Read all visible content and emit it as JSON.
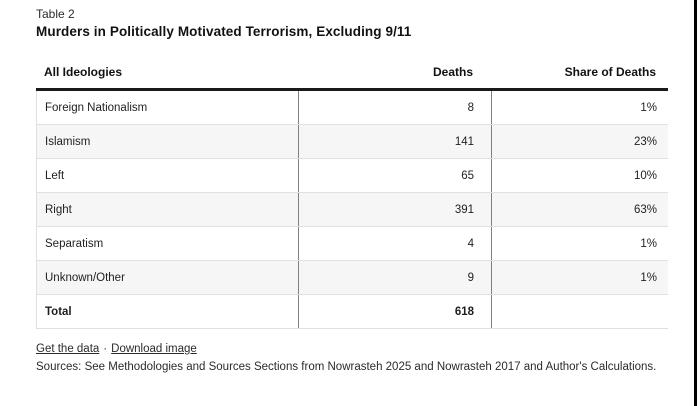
{
  "header": {
    "kicker": "Table 2",
    "title": "Murders in Politically Motivated Terrorism, Excluding 9/11"
  },
  "table": {
    "columns": {
      "ideology": "All Ideologies",
      "deaths": "Deaths",
      "share": "Share of Deaths"
    },
    "rows": [
      {
        "ideology": "Foreign Nationalism",
        "deaths": "8",
        "share": "1%"
      },
      {
        "ideology": "Islamism",
        "deaths": "141",
        "share": "23%"
      },
      {
        "ideology": "Left",
        "deaths": "65",
        "share": "10%"
      },
      {
        "ideology": "Right",
        "deaths": "391",
        "share": "63%"
      },
      {
        "ideology": "Separatism",
        "deaths": "4",
        "share": "1%"
      },
      {
        "ideology": "Unknown/Other",
        "deaths": "9",
        "share": "1%"
      }
    ],
    "total": {
      "ideology": "Total",
      "deaths": "618",
      "share": ""
    }
  },
  "footer": {
    "link_get_data": "Get the data",
    "link_separator": "·",
    "link_download": "Download image",
    "sources": "Sources: See Methodologies and Sources Sections from Nowrasteh 2025 and Nowrasteh 2017 and Author's Calculations."
  },
  "colors": {
    "header_rule": "#1a1a1a",
    "row_alt_background": "#f6f6f6",
    "column_divider": "#808080",
    "row_border": "#e0e0e0",
    "text": "#1f1f1f",
    "edge_bar": "#000000"
  },
  "chart_data": {
    "type": "table",
    "title": "Murders in Politically Motivated Terrorism, Excluding 9/11",
    "subtitle": "Table 2",
    "columns": [
      "All Ideologies",
      "Deaths",
      "Share of Deaths"
    ],
    "rows": [
      [
        "Foreign Nationalism",
        8,
        "1%"
      ],
      [
        "Islamism",
        141,
        "23%"
      ],
      [
        "Left",
        65,
        "10%"
      ],
      [
        "Right",
        391,
        "63%"
      ],
      [
        "Separatism",
        4,
        "1%"
      ],
      [
        "Unknown/Other",
        9,
        "1%"
      ]
    ],
    "total_row": [
      "Total",
      618,
      ""
    ],
    "layout_hints": {
      "alternating_row_shading": true,
      "numeric_columns_right_aligned": true,
      "thick_rule_under_header": true
    }
  }
}
